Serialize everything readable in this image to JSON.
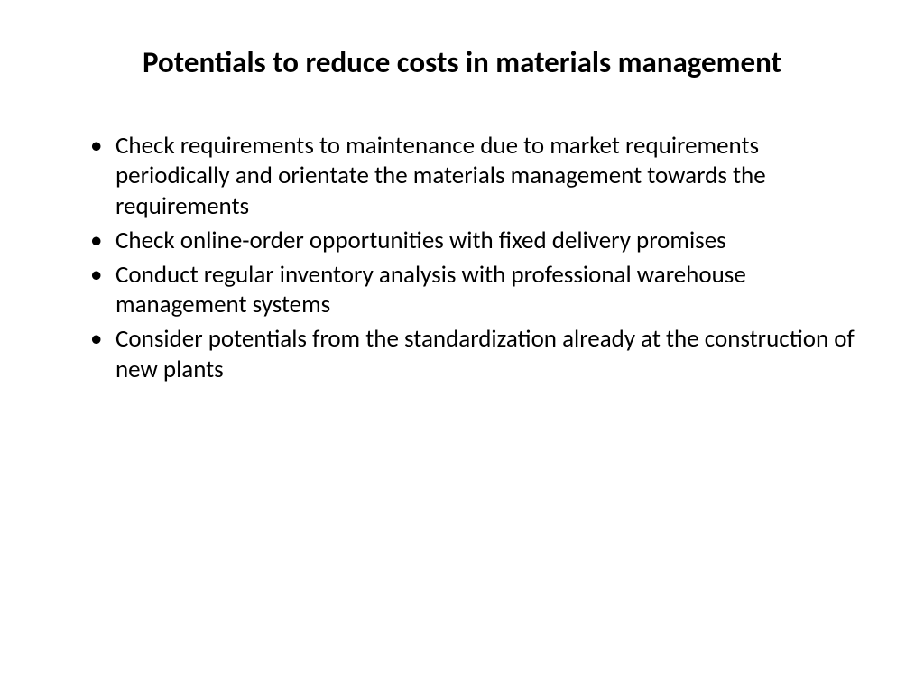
{
  "slide": {
    "title": "Potentials to reduce costs in materials management",
    "title_fontsize": 33,
    "title_fontweight": 700,
    "title_color": "#000000",
    "background_color": "#ffffff",
    "bullets": [
      "Check requirements to maintenance due to market requirements periodically and orientate the materials management towards the requirements",
      "Check online-order opportunities with fixed delivery promises",
      "Conduct regular inventory analysis with professional warehouse management systems",
      "Consider potentials from the standardization already at the construction of new plants"
    ],
    "bullet_fontsize": 27,
    "bullet_color": "#000000",
    "bullet_marker_color": "#000000"
  }
}
